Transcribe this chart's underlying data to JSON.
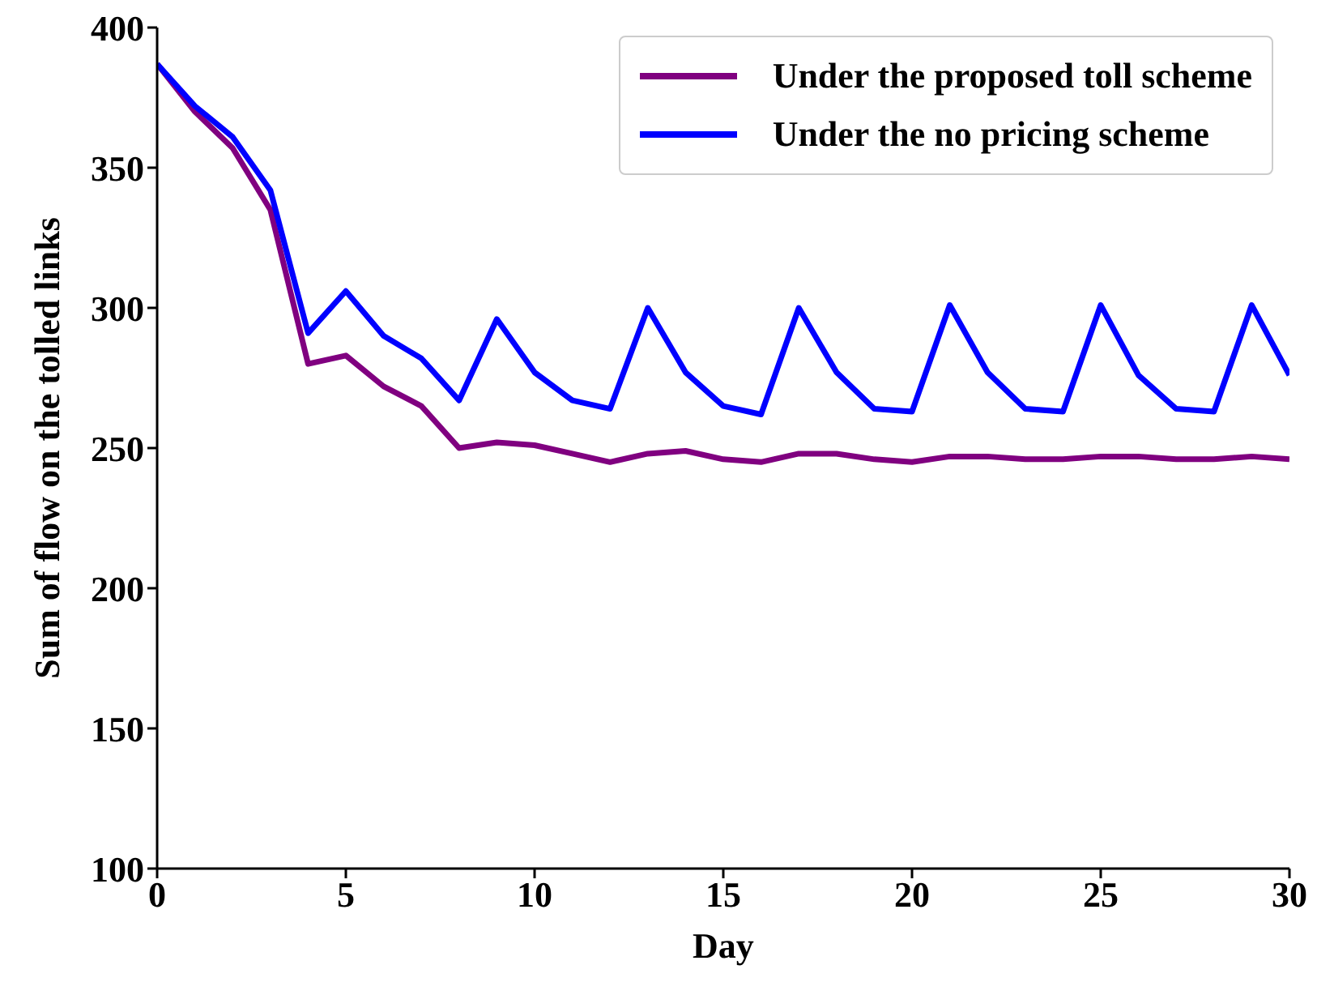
{
  "chart_data": {
    "type": "line",
    "xlabel": "Day",
    "ylabel": "Sum of flow on the tolled links",
    "x": [
      0,
      1,
      2,
      3,
      4,
      5,
      6,
      7,
      8,
      9,
      10,
      11,
      12,
      13,
      14,
      15,
      16,
      17,
      18,
      19,
      20,
      21,
      22,
      23,
      24,
      25,
      26,
      27,
      28,
      29,
      30
    ],
    "series": [
      {
        "name": "Under the proposed toll scheme",
        "color": "#800080",
        "values": [
          387,
          370,
          357,
          335,
          280,
          283,
          272,
          265,
          250,
          252,
          251,
          248,
          245,
          248,
          249,
          246,
          245,
          248,
          248,
          246,
          245,
          247,
          247,
          246,
          246,
          247,
          247,
          246,
          246,
          247,
          246
        ]
      },
      {
        "name": "Under the no pricing scheme",
        "color": "#0000ff",
        "values": [
          387,
          372,
          361,
          342,
          291,
          306,
          290,
          282,
          267,
          296,
          277,
          267,
          264,
          300,
          277,
          265,
          262,
          300,
          277,
          264,
          263,
          301,
          277,
          264,
          263,
          301,
          276,
          264,
          263,
          301,
          276
        ]
      }
    ],
    "xlim": [
      0,
      30
    ],
    "xticks": [
      0,
      5,
      10,
      15,
      20,
      25,
      30
    ],
    "ylim": [
      100,
      400
    ],
    "yticks": [
      100,
      150,
      200,
      250,
      300,
      350,
      400
    ],
    "grid": false,
    "legend": "top right",
    "marker": "none",
    "line_style": "solid"
  }
}
